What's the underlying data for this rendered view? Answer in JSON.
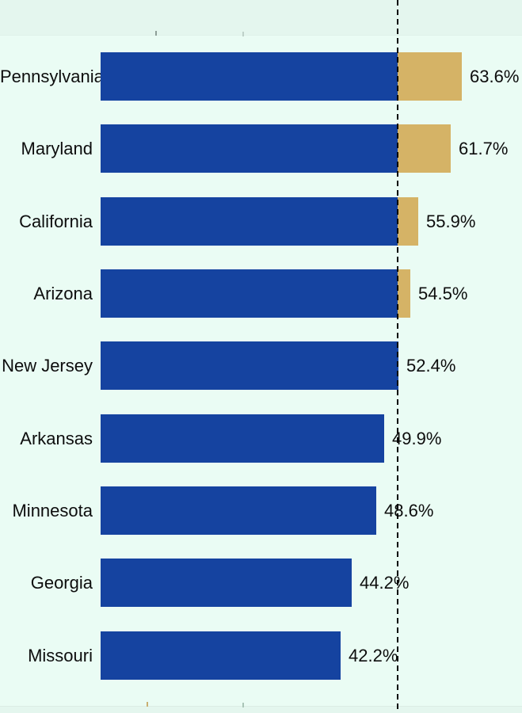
{
  "chart_data": {
    "type": "bar",
    "orientation": "horizontal",
    "title": "",
    "xlabel": "",
    "ylabel": "",
    "categories": [
      "Pennsylvania",
      "Maryland",
      "California",
      "Arizona",
      "New Jersey",
      "Arkansas",
      "Minnesota",
      "Georgia",
      "Missouri"
    ],
    "values": [
      63.6,
      61.7,
      55.9,
      54.5,
      52.4,
      49.9,
      48.6,
      44.2,
      42.2
    ],
    "value_labels": [
      "63.6%",
      "61.7%",
      "55.9%",
      "54.5%",
      "52.4%",
      "49.9%",
      "48.6%",
      "44.2%",
      "42.2%"
    ],
    "xlim": [
      0,
      74
    ],
    "grid": false,
    "legend_position": "none",
    "reference_line": {
      "style": "dashed-vertical",
      "value_pct_estimate": 52.3,
      "label": ""
    },
    "segment_rule": "portion of bar beyond the dashed reference line is highlighted gold"
  },
  "colors": {
    "bar_primary": "#1543a0",
    "bar_above_line": "#d5b366",
    "background": "#e4f6ee",
    "plot_background": "#eafcf4",
    "text": "#0d0d0d",
    "reference_line": "#030303"
  }
}
